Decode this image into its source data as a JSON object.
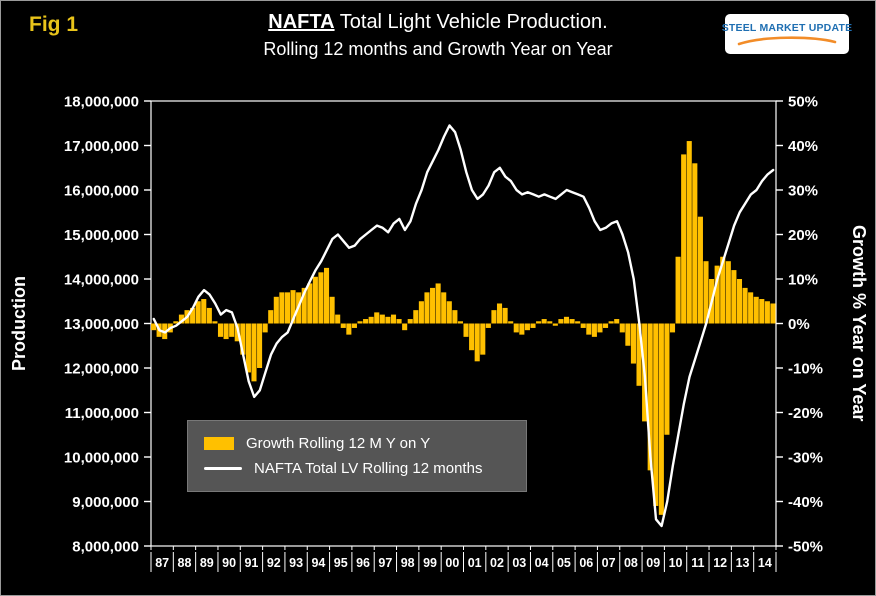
{
  "fig_label": "Fig 1",
  "title": {
    "em": "NAFTA",
    "line1_rest": " Total Light Vehicle Production.",
    "line2": "Rolling 12 months and Growth Year on Year"
  },
  "logo": {
    "text": "STEEL MARKET UPDATE"
  },
  "legend": {
    "bar_label": "Growth Rolling 12 M Y on Y",
    "line_label": "NAFTA Total LV Rolling 12 months"
  },
  "colors": {
    "background": "#000000",
    "bar": "#FFC000",
    "line": "#FFFFFF",
    "fig_label": "#E9C41A",
    "legend_bg": "#555555",
    "logo_blue": "#1F6FB2",
    "logo_orange": "#F28C28"
  },
  "chart_data": {
    "type": "combo_bar_line",
    "x_start_year": 1987,
    "x_step_years": 0.25,
    "x_labels": [
      "87",
      "88",
      "89",
      "90",
      "91",
      "92",
      "93",
      "94",
      "95",
      "96",
      "97",
      "98",
      "99",
      "00",
      "01",
      "02",
      "03",
      "04",
      "05",
      "06",
      "07",
      "08",
      "09",
      "10",
      "11",
      "12",
      "13",
      "14"
    ],
    "left_axis": {
      "title": "Production",
      "min": 8000000,
      "max": 18000000,
      "tick_labels": [
        "18,000,000",
        "17,000,000",
        "16,000,000",
        "15,000,000",
        "14,000,000",
        "13,000,000",
        "12,000,000",
        "11,000,000",
        "10,000,000",
        "9,000,000",
        "8,000,000"
      ]
    },
    "right_axis": {
      "title": "Growth % Year on Year",
      "min": -50,
      "max": 50,
      "tick_labels": [
        "50%",
        "40%",
        "30%",
        "20%",
        "10%",
        "0%",
        "-10%",
        "-20%",
        "-30%",
        "-40%",
        "-50%"
      ]
    },
    "series": [
      {
        "name": "Growth Rolling 12 M Y on Y",
        "type": "bar",
        "axis": "right",
        "unit": "percent_year_on_year",
        "color": "#FFC000",
        "values": [
          -1.5,
          -3,
          -3.5,
          -2,
          0.5,
          2,
          3,
          3.5,
          5,
          5.5,
          3.5,
          0.5,
          -3,
          -3.5,
          -3,
          -4,
          -7,
          -11,
          -13,
          -10,
          -2,
          3,
          6,
          7,
          7,
          7.5,
          7,
          8,
          9,
          10.5,
          11.5,
          12.5,
          6,
          2,
          -1,
          -2.5,
          -1,
          0.5,
          1,
          1.5,
          2.5,
          2,
          1.5,
          2,
          1,
          -1.5,
          1,
          3,
          5,
          7,
          8,
          9,
          7,
          5,
          3,
          0.5,
          -3,
          -6,
          -8.5,
          -7,
          -1,
          3,
          4.5,
          3.5,
          0.5,
          -2,
          -2.5,
          -1.5,
          -1,
          0.5,
          1,
          0.5,
          -0.5,
          1,
          1.5,
          1,
          0.5,
          -1,
          -2.5,
          -3,
          -2,
          -1,
          0.5,
          1,
          -2,
          -5,
          -9,
          -14,
          -22,
          -33,
          -41,
          -43,
          -25,
          -2,
          15,
          38,
          41,
          36,
          24,
          14,
          10,
          13,
          15,
          14,
          12,
          10,
          8,
          7,
          6,
          5.5,
          5,
          4.5
        ]
      },
      {
        "name": "NAFTA Total LV Rolling 12 months",
        "type": "line",
        "axis": "left",
        "unit": "millions_of_vehicles",
        "color": "#FFFFFF",
        "values": [
          13.1,
          12.85,
          12.8,
          12.9,
          12.95,
          13.05,
          13.15,
          13.35,
          13.6,
          13.75,
          13.65,
          13.45,
          13.2,
          13.3,
          13.25,
          12.9,
          12.3,
          11.7,
          11.35,
          11.5,
          11.9,
          12.3,
          12.55,
          12.7,
          12.8,
          13.1,
          13.4,
          13.7,
          13.95,
          14.2,
          14.4,
          14.65,
          14.9,
          15.0,
          14.85,
          14.7,
          14.75,
          14.9,
          15.0,
          15.1,
          15.2,
          15.15,
          15.05,
          15.25,
          15.35,
          15.1,
          15.3,
          15.7,
          16.0,
          16.4,
          16.65,
          16.9,
          17.2,
          17.45,
          17.3,
          16.9,
          16.4,
          16.0,
          15.8,
          15.9,
          16.1,
          16.4,
          16.5,
          16.3,
          16.2,
          16.0,
          15.9,
          15.95,
          15.9,
          15.85,
          15.9,
          15.85,
          15.8,
          15.9,
          16.0,
          15.95,
          15.9,
          15.85,
          15.6,
          15.3,
          15.1,
          15.15,
          15.25,
          15.3,
          15.0,
          14.6,
          14.0,
          13.0,
          11.8,
          10.0,
          8.6,
          8.45,
          9.0,
          9.8,
          10.5,
          11.2,
          11.8,
          12.2,
          12.6,
          13.0,
          13.5,
          14.0,
          14.4,
          14.8,
          15.2,
          15.5,
          15.7,
          15.9,
          16.0,
          16.2,
          16.35,
          16.45
        ]
      }
    ]
  }
}
